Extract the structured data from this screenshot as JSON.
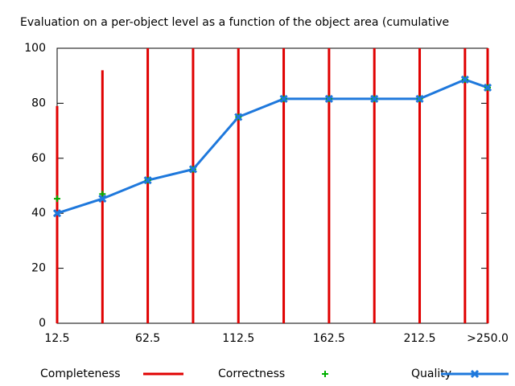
{
  "chart_data": {
    "type": "line",
    "title": "Evaluation on a per-object level as a function of the object area (cumulative",
    "x": [
      12.5,
      37.5,
      62.5,
      87.5,
      112.5,
      137.5,
      162.5,
      187.5,
      212.5,
      237.5,
      250
    ],
    "series": [
      {
        "name": "Completeness",
        "color": "#e00000",
        "style": "impulses",
        "values": [
          79,
          92,
          100,
          100,
          100,
          100,
          100,
          100,
          100,
          100,
          100
        ]
      },
      {
        "name": "Correctness",
        "color": "#00b000",
        "style": "points",
        "values": [
          45.3,
          47,
          52,
          56,
          75,
          81.6,
          81.6,
          81.6,
          81.6,
          88.6,
          85.7
        ]
      },
      {
        "name": "Quality",
        "color": "#1e78dc",
        "style": "linespoints",
        "values": [
          40,
          45.3,
          52,
          56,
          75,
          81.6,
          81.6,
          81.6,
          81.6,
          88.6,
          85.7
        ]
      }
    ],
    "xlim": [
      12.5,
      250
    ],
    "xticks": [
      12.5,
      62.5,
      112.5,
      162.5,
      212.5,
      {
        "value": 250,
        "label": ">250.0"
      }
    ],
    "ylim": [
      0,
      100
    ],
    "yticks": [
      0,
      20,
      40,
      60,
      80,
      100
    ],
    "legend": "bottom"
  }
}
